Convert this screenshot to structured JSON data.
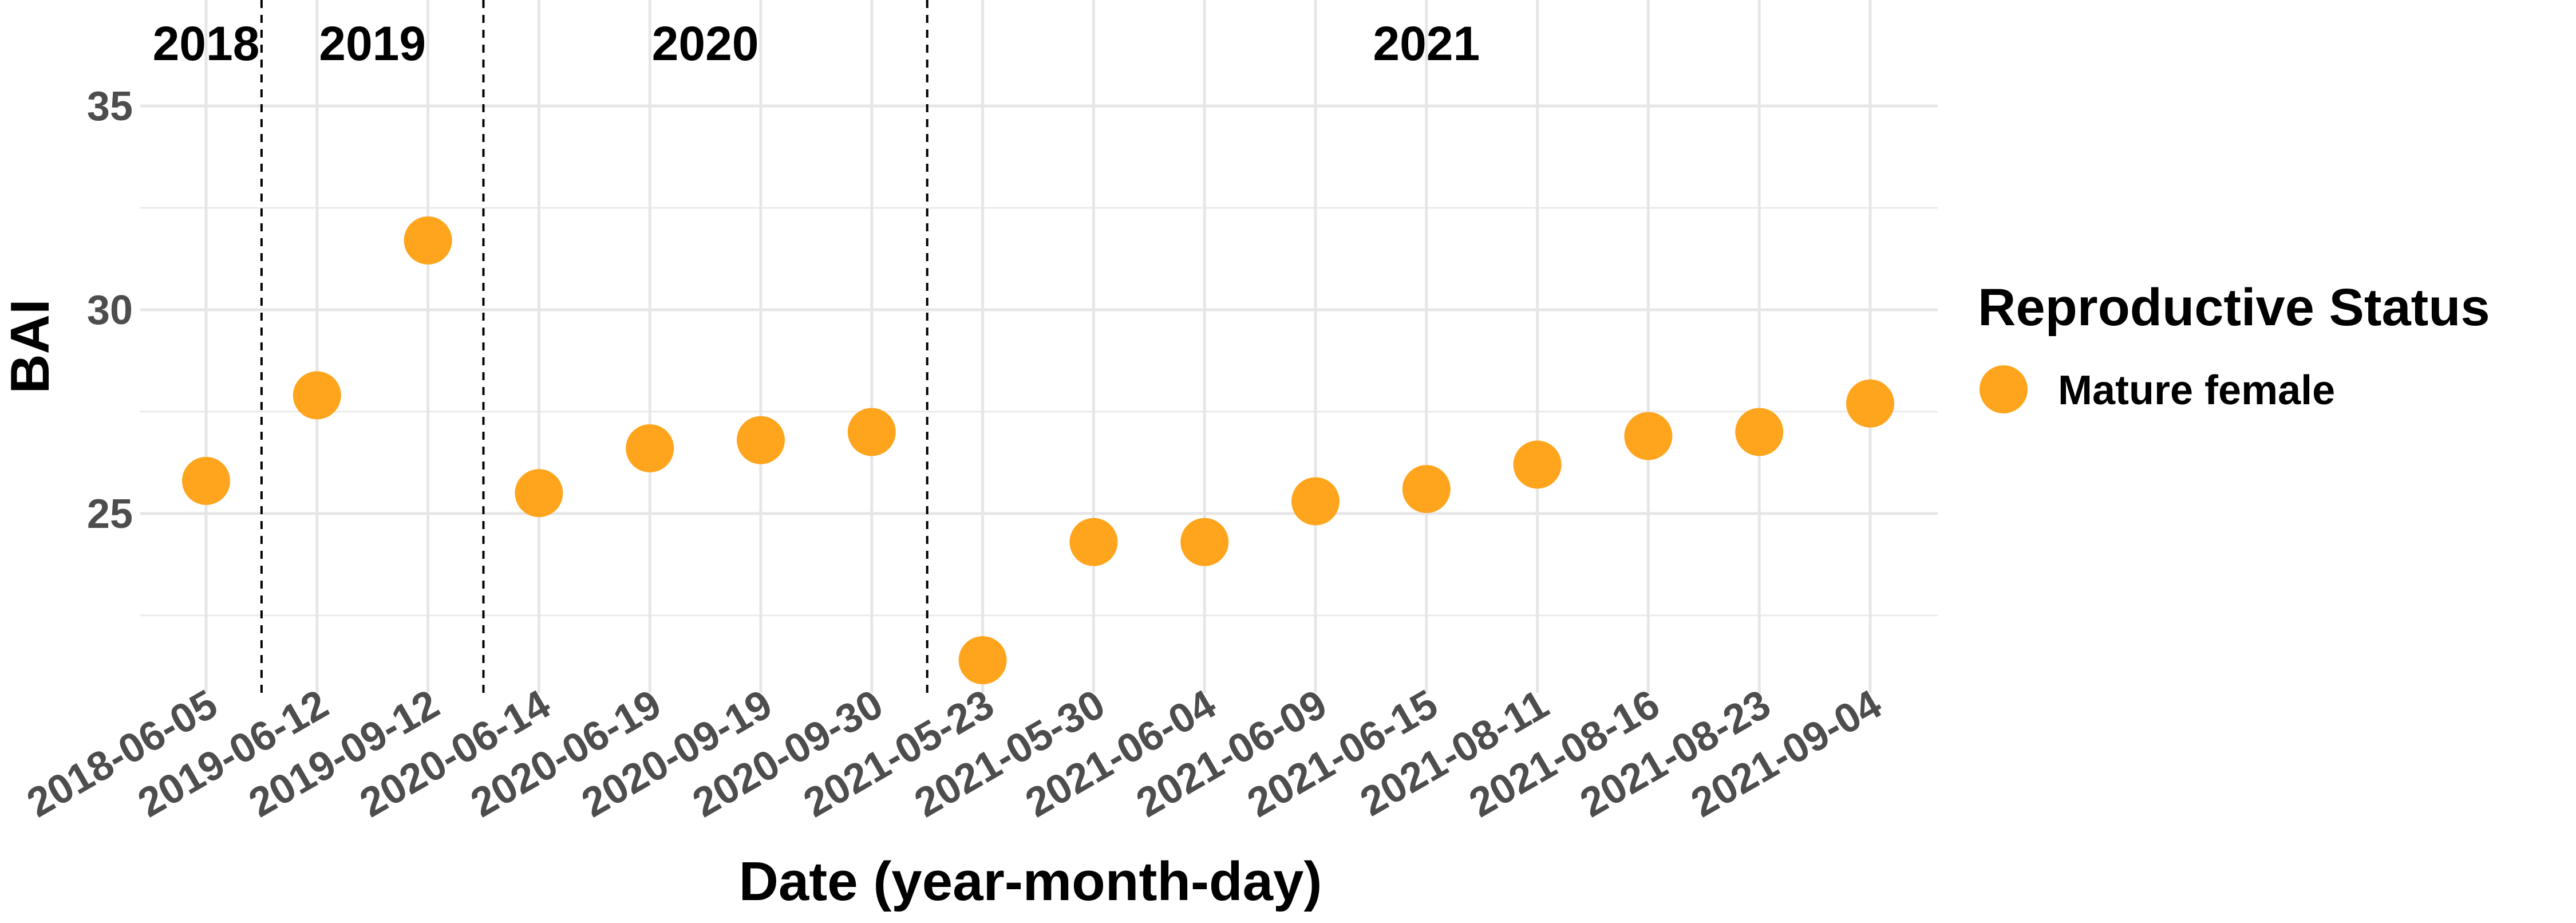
{
  "chart_data": {
    "type": "scatter",
    "xlabel": "Date (year-month-day)",
    "ylabel": "BAI",
    "ylim": [
      20.6,
      37.6
    ],
    "y_major_ticks": [
      25,
      30,
      35
    ],
    "y_minor_gridlines": [
      22.5,
      27.5,
      32.5
    ],
    "grid": true,
    "categories": [
      "2018-06-05",
      "2019-06-12",
      "2019-09-12",
      "2020-06-14",
      "2020-06-19",
      "2020-09-19",
      "2020-09-30",
      "2021-05-23",
      "2021-05-30",
      "2021-06-04",
      "2021-06-09",
      "2021-06-15",
      "2021-08-11",
      "2021-08-16",
      "2021-08-23",
      "2021-09-04"
    ],
    "series": [
      {
        "name": "Mature female",
        "color": "#FFA51D",
        "values": [
          25.8,
          27.9,
          31.7,
          25.5,
          26.6,
          26.8,
          27.0,
          21.4,
          24.3,
          24.3,
          25.3,
          25.6,
          26.2,
          26.9,
          27.0,
          27.7
        ]
      }
    ],
    "year_dividers_after_index": [
      0,
      2,
      6
    ],
    "year_labels": [
      "2018",
      "2019",
      "2020",
      "2021"
    ],
    "legend": {
      "title": "Reproductive Status",
      "placement": "right",
      "items": [
        "Mature female"
      ]
    }
  }
}
